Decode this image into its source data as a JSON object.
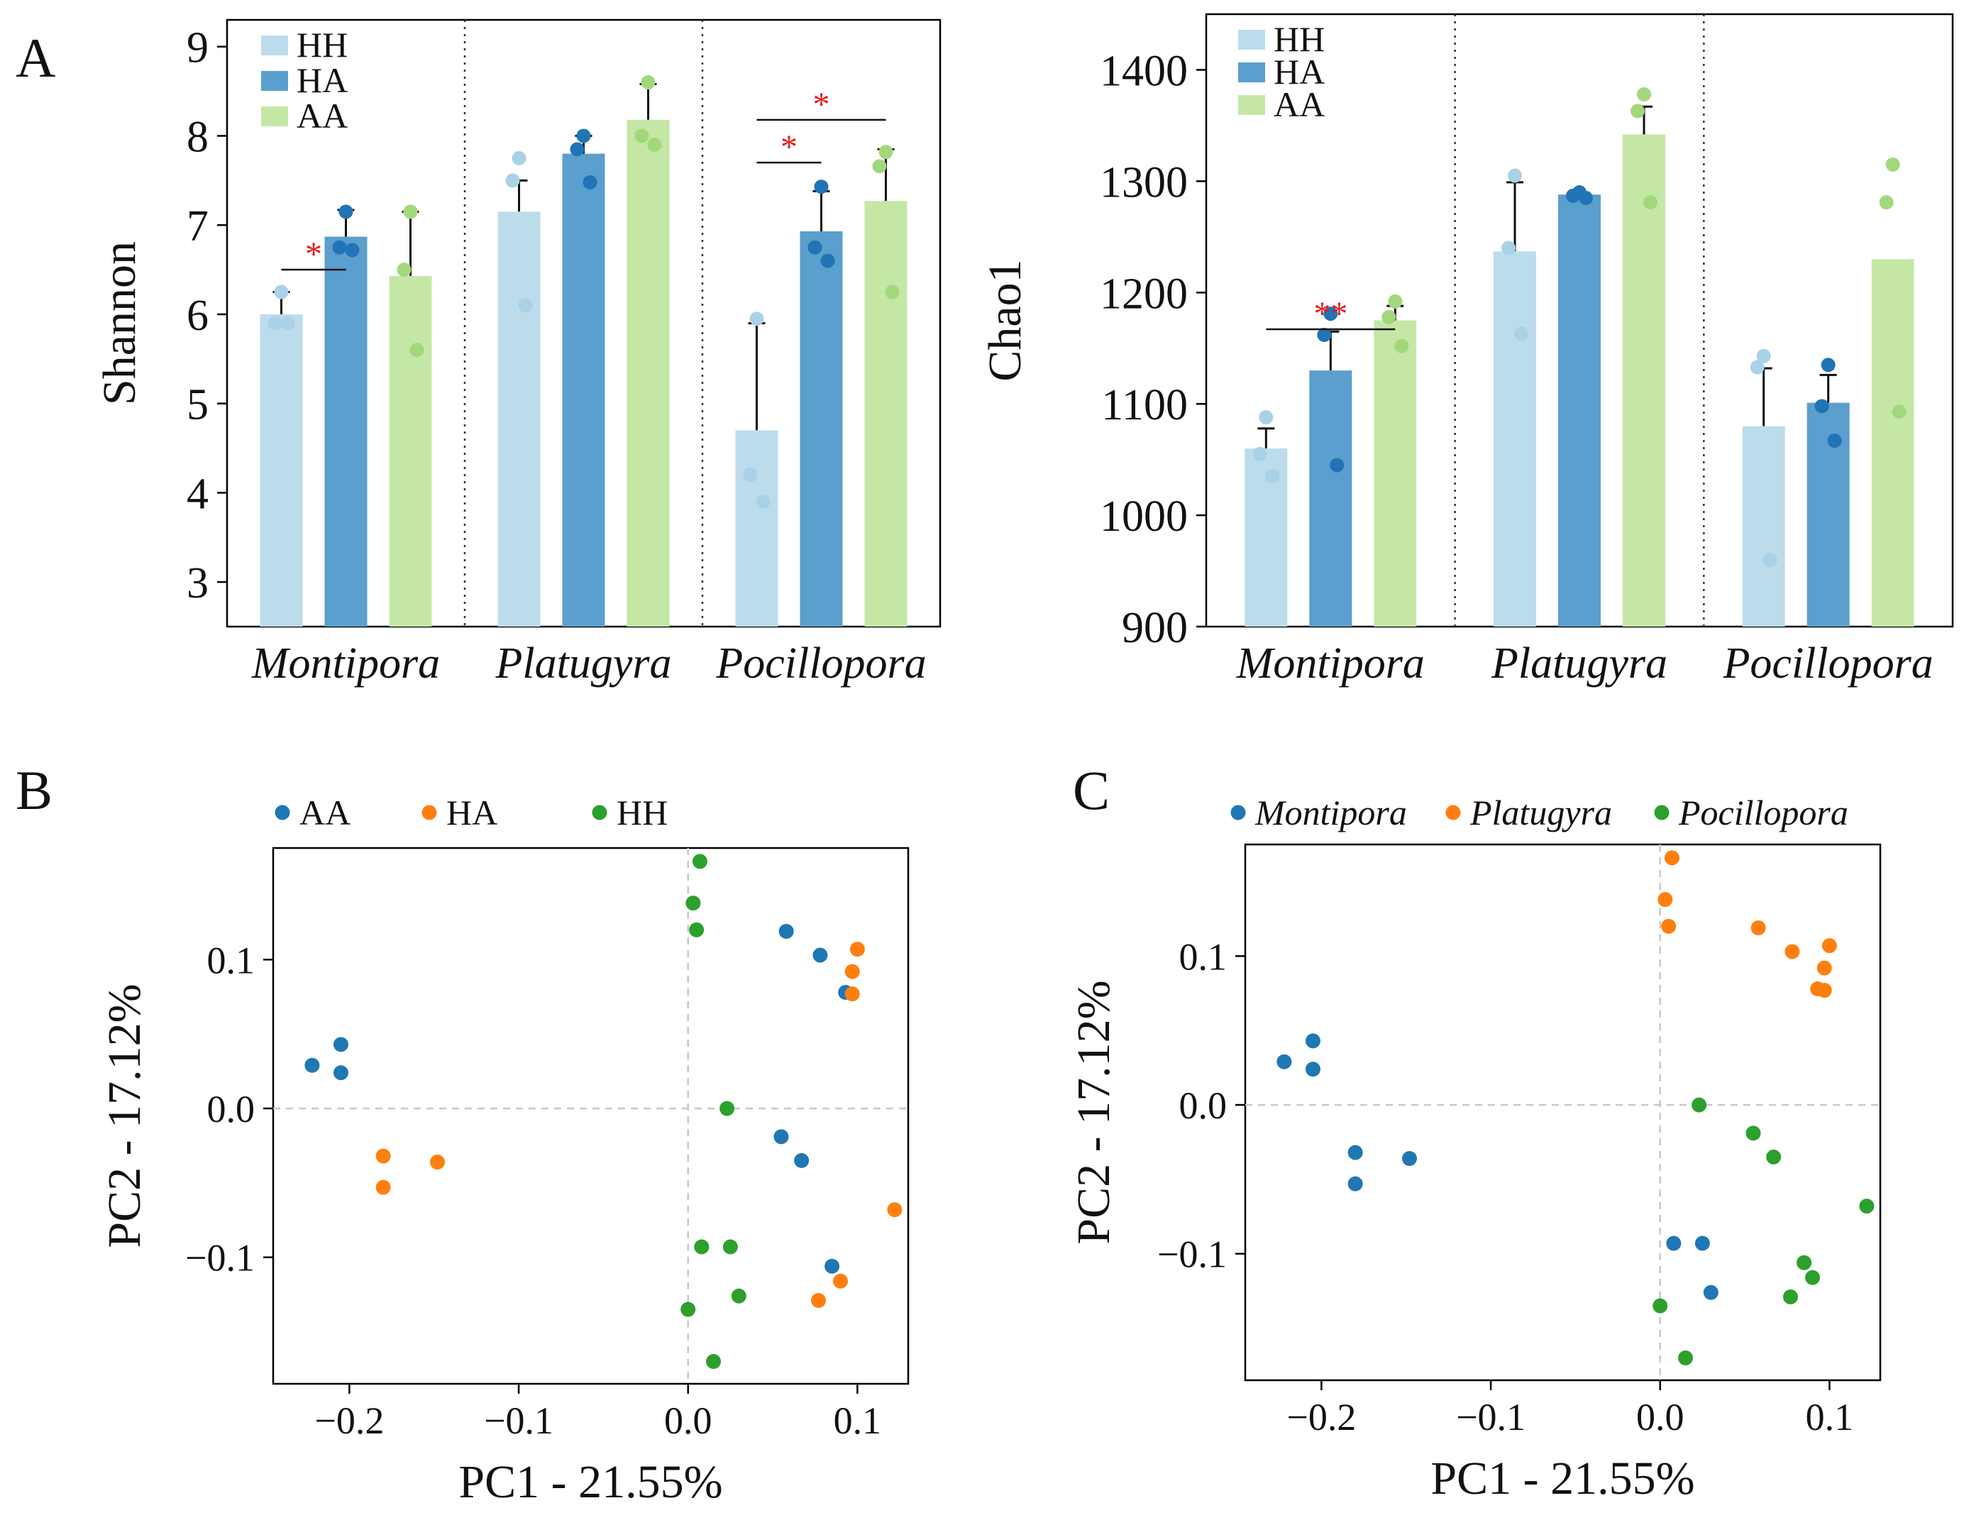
{
  "colors": {
    "HH": "#bcdcec",
    "HA": "#5a9fcd",
    "AA": "#c5e7a6",
    "HH_dot": "#a9d1e7",
    "HA_dot": "#2174b5",
    "AA_dot": "#a3d77c",
    "sig": "#e41a1c",
    "pca_AA": "#1f77b4",
    "pca_HA": "#ff7f0e",
    "pca_HH": "#2ca02c"
  },
  "panel_letters": {
    "a": "A",
    "b": "B",
    "c": "C"
  },
  "chart_data": [
    {
      "id": "shannon",
      "type": "bar",
      "ylabel": "Shannon",
      "ylim": [
        2.5,
        9.3
      ],
      "yticks": [
        3,
        4,
        5,
        6,
        7,
        8,
        9
      ],
      "categories": [
        "Montipora",
        "Platugyra",
        "Pocillopora"
      ],
      "legend": [
        "HH",
        "HA",
        "AA"
      ],
      "series": [
        {
          "name": "HH",
          "values": [
            6.0,
            7.15,
            4.7
          ],
          "err": [
            0.25,
            0.35,
            1.2
          ],
          "points": [
            [
              6.25,
              5.9,
              5.9
            ],
            [
              7.75,
              7.5,
              6.1
            ],
            [
              5.95,
              4.2,
              3.9
            ]
          ]
        },
        {
          "name": "HA",
          "values": [
            6.87,
            7.8,
            6.93
          ],
          "err": [
            0.3,
            0.2,
            0.45
          ],
          "points": [
            [
              7.15,
              6.75,
              6.72
            ],
            [
              8.0,
              7.85,
              7.48
            ],
            [
              7.43,
              6.75,
              6.6
            ]
          ]
        },
        {
          "name": "AA",
          "values": [
            6.43,
            8.18,
            7.27
          ],
          "err": [
            0.72,
            0.4,
            0.58
          ],
          "points": [
            [
              7.15,
              6.5,
              5.6
            ],
            [
              8.6,
              8.0,
              7.9
            ],
            [
              7.82,
              7.66,
              6.25
            ]
          ]
        }
      ],
      "significance": [
        {
          "group": 0,
          "from": 0,
          "to": 1,
          "y": 6.5,
          "label": "*"
        },
        {
          "group": 2,
          "from": 0,
          "to": 1,
          "y": 7.7,
          "label": "*"
        },
        {
          "group": 2,
          "from": 0,
          "to": 2,
          "y": 8.18,
          "label": "*"
        }
      ]
    },
    {
      "id": "chao1",
      "type": "bar",
      "ylabel": "Chao1",
      "ylim": [
        900,
        1450
      ],
      "yticks": [
        900,
        1000,
        1100,
        1200,
        1300,
        1400
      ],
      "categories": [
        "Montipora",
        "Platugyra",
        "Pocillopora"
      ],
      "legend": [
        "HH",
        "HA",
        "AA"
      ],
      "series": [
        {
          "name": "HH",
          "values": [
            1060,
            1237,
            1080
          ],
          "err": [
            18,
            62,
            52
          ],
          "points": [
            [
              1088,
              1055,
              1035
            ],
            [
              1305,
              1240,
              1163
            ],
            [
              1143,
              1133,
              960
            ]
          ]
        },
        {
          "name": "HA",
          "values": [
            1130,
            1288,
            1101
          ],
          "err": [
            35,
            2,
            25
          ],
          "points": [
            [
              1181,
              1162,
              1045
            ],
            [
              1290,
              1287,
              1285
            ],
            [
              1135,
              1098,
              1067
            ]
          ]
        },
        {
          "name": "AA",
          "values": [
            1175,
            1342,
            1230
          ],
          "err": [
            13,
            25,
            0
          ],
          "points": [
            [
              1192,
              1178,
              1152
            ],
            [
              1378,
              1363,
              1281
            ],
            [
              1315,
              1281,
              1093
            ]
          ]
        }
      ],
      "significance": [
        {
          "group": 0,
          "from": 0,
          "to": 2,
          "y": 1167,
          "label": "**"
        }
      ]
    },
    {
      "id": "pca_treatment",
      "type": "scatter",
      "xlabel": "PC1 - 21.55%",
      "ylabel": "PC2 - 17.12%",
      "xlim": [
        -0.245,
        0.13
      ],
      "ylim": [
        -0.185,
        0.175
      ],
      "xticks": [
        -0.2,
        -0.1,
        0.0,
        0.1
      ],
      "xtick_labels": [
        "−0.2",
        "−0.1",
        "0.0",
        "0.1"
      ],
      "yticks": [
        -0.1,
        0.0,
        0.1
      ],
      "ytick_labels": [
        "−0.1",
        "0.0",
        "0.1"
      ],
      "legend": [
        "AA",
        "HA",
        "HH"
      ],
      "series": [
        {
          "name": "AA",
          "points": [
            [
              -0.222,
              0.029
            ],
            [
              -0.205,
              0.043
            ],
            [
              -0.205,
              0.024
            ],
            [
              0.058,
              0.119
            ],
            [
              0.078,
              0.103
            ],
            [
              0.093,
              0.078
            ],
            [
              0.055,
              -0.019
            ],
            [
              0.067,
              -0.035
            ],
            [
              0.085,
              -0.106
            ]
          ]
        },
        {
          "name": "HA",
          "points": [
            [
              -0.18,
              -0.032
            ],
            [
              -0.18,
              -0.053
            ],
            [
              -0.148,
              -0.036
            ],
            [
              0.1,
              0.107
            ],
            [
              0.097,
              0.092
            ],
            [
              0.097,
              0.077
            ],
            [
              0.122,
              -0.068
            ],
            [
              0.09,
              -0.116
            ],
            [
              0.077,
              -0.129
            ]
          ]
        },
        {
          "name": "HH",
          "points": [
            [
              0.007,
              0.166
            ],
            [
              0.003,
              0.138
            ],
            [
              0.005,
              0.12
            ],
            [
              0.023,
              0.0
            ],
            [
              0.008,
              -0.093
            ],
            [
              0.025,
              -0.093
            ],
            [
              0.03,
              -0.126
            ],
            [
              0.0,
              -0.135
            ],
            [
              0.015,
              -0.17
            ]
          ]
        }
      ]
    },
    {
      "id": "pca_genus",
      "type": "scatter",
      "xlabel": "PC1 - 21.55%",
      "ylabel": "PC2 - 17.12%",
      "xlim": [
        -0.245,
        0.13
      ],
      "ylim": [
        -0.185,
        0.175
      ],
      "xticks": [
        -0.2,
        -0.1,
        0.0,
        0.1
      ],
      "xtick_labels": [
        "−0.2",
        "−0.1",
        "0.0",
        "0.1"
      ],
      "yticks": [
        -0.1,
        0.0,
        0.1
      ],
      "ytick_labels": [
        "−0.1",
        "0.0",
        "0.1"
      ],
      "legend": [
        "Montipora",
        "Platugyra",
        "Pocillopora"
      ],
      "series": [
        {
          "name": "Montipora",
          "points": [
            [
              -0.222,
              0.029
            ],
            [
              -0.205,
              0.043
            ],
            [
              -0.205,
              0.024
            ],
            [
              -0.18,
              -0.032
            ],
            [
              -0.18,
              -0.053
            ],
            [
              -0.148,
              -0.036
            ],
            [
              0.008,
              -0.093
            ],
            [
              0.025,
              -0.093
            ],
            [
              0.03,
              -0.126
            ]
          ]
        },
        {
          "name": "Platugyra",
          "points": [
            [
              0.007,
              0.166
            ],
            [
              0.003,
              0.138
            ],
            [
              0.005,
              0.12
            ],
            [
              0.058,
              0.119
            ],
            [
              0.078,
              0.103
            ],
            [
              0.1,
              0.107
            ],
            [
              0.097,
              0.092
            ],
            [
              0.093,
              0.078
            ],
            [
              0.097,
              0.077
            ]
          ]
        },
        {
          "name": "Pocillopora",
          "points": [
            [
              0.023,
              0.0
            ],
            [
              0.055,
              -0.019
            ],
            [
              0.067,
              -0.035
            ],
            [
              0.122,
              -0.068
            ],
            [
              0.085,
              -0.106
            ],
            [
              0.09,
              -0.116
            ],
            [
              0.077,
              -0.129
            ],
            [
              0.0,
              -0.135
            ],
            [
              0.015,
              -0.17
            ]
          ]
        }
      ]
    }
  ]
}
